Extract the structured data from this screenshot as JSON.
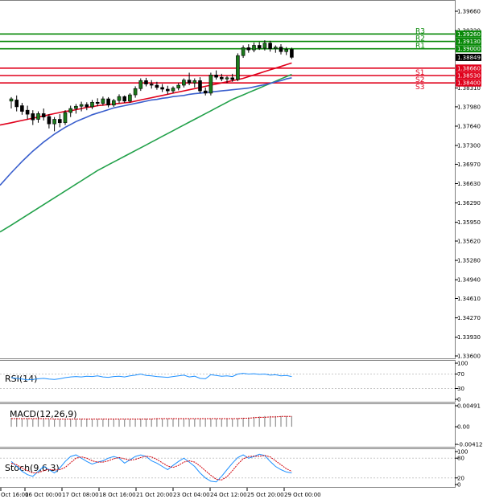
{
  "colors": {
    "bull": "#1b7a1b",
    "bear": "#000000",
    "sma_fast": "#e0001b",
    "sma_mid": "#3a5fcd",
    "sma_slow": "#22a14a",
    "resistance": "#0a8a0a",
    "support": "#e0001b",
    "oscillator": "#1e90ff",
    "signal": "#d0000a",
    "grid": "#c8c8c8",
    "current_price_box": "#000000"
  },
  "chart_data": [
    {
      "type": "candlestick",
      "name": "price",
      "ylim": [
        1.336,
        1.3966
      ],
      "y_ticks": [
        "1.39660",
        "1.39320",
        "1.38310",
        "1.37980",
        "1.37640",
        "1.37300",
        "1.36970",
        "1.36630",
        "1.36290",
        "1.35950",
        "1.35620",
        "1.35280",
        "1.34940",
        "1.34610",
        "1.34270",
        "1.33930",
        "1.33600"
      ],
      "x_tick_labels": [
        "Oct 16:00",
        "16 Oct 00:00",
        "17 Oct 08:00",
        "18 Oct 16:00",
        "21 Oct 20:00",
        "23 Oct 04:00",
        "24 Oct 12:00",
        "25 Oct 20:00",
        "29 Oct 00:00"
      ],
      "current_price": "1.38849",
      "levels": [
        {
          "name": "R3",
          "value": 1.3926,
          "label": "1.39260",
          "kind": "resistance"
        },
        {
          "name": "R2",
          "value": 1.3913,
          "label": "1.39130",
          "kind": "resistance"
        },
        {
          "name": "R1",
          "value": 1.39,
          "label": "1.39000",
          "kind": "resistance"
        },
        {
          "name": "S1",
          "value": 1.3866,
          "label": "1.38660",
          "kind": "support"
        },
        {
          "name": "S2",
          "value": 1.3853,
          "label": "1.38530",
          "kind": "support"
        },
        {
          "name": "S3",
          "value": 1.384,
          "label": "1.38400",
          "kind": "support"
        }
      ],
      "candles": [
        [
          1.3808,
          1.3815,
          1.3795,
          1.3812
        ],
        [
          1.381,
          1.3818,
          1.379,
          1.3798
        ],
        [
          1.38,
          1.3805,
          1.3784,
          1.379
        ],
        [
          1.3792,
          1.38,
          1.3776,
          1.3785
        ],
        [
          1.3786,
          1.3792,
          1.3766,
          1.3775
        ],
        [
          1.3776,
          1.379,
          1.377,
          1.3786
        ],
        [
          1.3786,
          1.3795,
          1.3774,
          1.378
        ],
        [
          1.3781,
          1.3785,
          1.376,
          1.3768
        ],
        [
          1.3768,
          1.378,
          1.3755,
          1.3776
        ],
        [
          1.3776,
          1.3785,
          1.3762,
          1.377
        ],
        [
          1.377,
          1.3792,
          1.3766,
          1.3788
        ],
        [
          1.3788,
          1.38,
          1.378,
          1.3795
        ],
        [
          1.3795,
          1.3803,
          1.3786,
          1.3799
        ],
        [
          1.3799,
          1.3807,
          1.379,
          1.3802
        ],
        [
          1.3802,
          1.3806,
          1.3792,
          1.3798
        ],
        [
          1.3798,
          1.381,
          1.3794,
          1.3806
        ],
        [
          1.3806,
          1.3813,
          1.3799,
          1.3804
        ],
        [
          1.3804,
          1.3816,
          1.38,
          1.3812
        ],
        [
          1.3812,
          1.3815,
          1.3797,
          1.3801
        ],
        [
          1.3801,
          1.3812,
          1.3798,
          1.3809
        ],
        [
          1.3809,
          1.382,
          1.3804,
          1.3816
        ],
        [
          1.3816,
          1.3818,
          1.3805,
          1.3808
        ],
        [
          1.3808,
          1.3822,
          1.3805,
          1.3819
        ],
        [
          1.3819,
          1.3834,
          1.3814,
          1.383
        ],
        [
          1.383,
          1.3848,
          1.3826,
          1.3844
        ],
        [
          1.3844,
          1.3849,
          1.3834,
          1.3838
        ],
        [
          1.3838,
          1.3845,
          1.383,
          1.3836
        ],
        [
          1.3836,
          1.3842,
          1.3828,
          1.3832
        ],
        [
          1.3832,
          1.3838,
          1.3824,
          1.3829
        ],
        [
          1.3829,
          1.3835,
          1.382,
          1.3826
        ],
        [
          1.3826,
          1.3834,
          1.3822,
          1.3831
        ],
        [
          1.3831,
          1.384,
          1.3827,
          1.3836
        ],
        [
          1.3836,
          1.3848,
          1.3832,
          1.3845
        ],
        [
          1.3845,
          1.3858,
          1.3836,
          1.384
        ],
        [
          1.384,
          1.3848,
          1.3832,
          1.3844
        ],
        [
          1.3844,
          1.385,
          1.3822,
          1.3826
        ],
        [
          1.3826,
          1.3832,
          1.3818,
          1.3822
        ],
        [
          1.3822,
          1.3858,
          1.3818,
          1.3854
        ],
        [
          1.3854,
          1.3862,
          1.3846,
          1.385
        ],
        [
          1.385,
          1.3856,
          1.3843,
          1.3847
        ],
        [
          1.3847,
          1.3852,
          1.384,
          1.3849
        ],
        [
          1.3849,
          1.3856,
          1.3842,
          1.3846
        ],
        [
          1.3846,
          1.3892,
          1.3843,
          1.3888
        ],
        [
          1.3888,
          1.3906,
          1.3884,
          1.3902
        ],
        [
          1.3902,
          1.3908,
          1.3893,
          1.3898
        ],
        [
          1.3898,
          1.3911,
          1.3894,
          1.3906
        ],
        [
          1.3906,
          1.3912,
          1.3898,
          1.3901
        ],
        [
          1.3901,
          1.3915,
          1.3897,
          1.391
        ],
        [
          1.391,
          1.3914,
          1.3895,
          1.39
        ],
        [
          1.39,
          1.3906,
          1.3893,
          1.3903
        ],
        [
          1.3903,
          1.3908,
          1.389,
          1.3895
        ],
        [
          1.3895,
          1.3903,
          1.3889,
          1.3899
        ],
        [
          1.3899,
          1.3902,
          1.3882,
          1.3885
        ]
      ],
      "sma_fast": [
        1.377,
        1.3772,
        1.3774,
        1.3776,
        1.3778,
        1.378,
        1.3782,
        1.3784,
        1.3786,
        1.3788,
        1.379,
        1.3791,
        1.3793,
        1.3795,
        1.3797,
        1.3798,
        1.38,
        1.3801,
        1.3802,
        1.3803,
        1.3804,
        1.3805,
        1.3806,
        1.3808,
        1.381,
        1.3812,
        1.3814,
        1.3816,
        1.3818,
        1.382,
        1.3822,
        1.3824,
        1.3826,
        1.3828,
        1.383,
        1.3832,
        1.3834,
        1.3836,
        1.3838,
        1.384,
        1.3842,
        1.3844,
        1.3846,
        1.3848,
        1.3851,
        1.3854,
        1.3857,
        1.386,
        1.3863,
        1.3866,
        1.3869,
        1.3872,
        1.3875
      ],
      "sma_mid": [
        1.3682,
        1.3692,
        1.3702,
        1.3711,
        1.372,
        1.3728,
        1.3736,
        1.3743,
        1.375,
        1.3756,
        1.3762,
        1.3767,
        1.3772,
        1.3776,
        1.378,
        1.3784,
        1.3787,
        1.379,
        1.3793,
        1.3796,
        1.3798,
        1.38,
        1.3802,
        1.3804,
        1.3806,
        1.3808,
        1.381,
        1.3811,
        1.3813,
        1.3814,
        1.3816,
        1.3817,
        1.3818,
        1.382,
        1.3821,
        1.3822,
        1.3823,
        1.3824,
        1.3825,
        1.3826,
        1.3827,
        1.3828,
        1.3829,
        1.383,
        1.3831,
        1.3833,
        1.3835,
        1.3837,
        1.3839,
        1.3842,
        1.3844,
        1.3847,
        1.3849
      ],
      "sma_slow": [
        1.359,
        1.3596,
        1.3602,
        1.3608,
        1.3614,
        1.362,
        1.3626,
        1.3632,
        1.3638,
        1.3644,
        1.365,
        1.3656,
        1.3662,
        1.3668,
        1.3674,
        1.368,
        1.3686,
        1.3691,
        1.3696,
        1.3701,
        1.3706,
        1.3711,
        1.3716,
        1.3721,
        1.3726,
        1.3731,
        1.3736,
        1.3741,
        1.3746,
        1.3751,
        1.3756,
        1.3761,
        1.3766,
        1.3771,
        1.3776,
        1.3781,
        1.3786,
        1.3791,
        1.3796,
        1.3801,
        1.3806,
        1.3811,
        1.3815,
        1.3819,
        1.3823,
        1.3827,
        1.3831,
        1.3835,
        1.3839,
        1.3843,
        1.3847,
        1.3851,
        1.3855
      ]
    },
    {
      "type": "line",
      "name": "RSI(14)",
      "label": "RSI(14)",
      "ylim": [
        0,
        100
      ],
      "y_ticks": [
        "100",
        "70",
        "30",
        "0"
      ],
      "values": [
        60,
        58,
        56,
        54,
        55,
        57,
        58,
        56,
        55,
        57,
        60,
        62,
        63,
        62,
        64,
        63,
        65,
        62,
        61,
        63,
        64,
        62,
        65,
        67,
        70,
        66,
        65,
        63,
        62,
        61,
        63,
        65,
        67,
        62,
        64,
        58,
        57,
        68,
        66,
        64,
        65,
        63,
        70,
        72,
        70,
        71,
        69,
        70,
        67,
        68,
        65,
        66,
        63
      ]
    },
    {
      "type": "bar",
      "name": "MACD(12,26,9)",
      "label": "MACD(12,26,9)",
      "ylim": [
        -0.00412,
        0.00491
      ],
      "y_ticks": [
        "0.00491",
        "0.00",
        "-0.00412"
      ],
      "histogram": [
        0.0021,
        0.0021,
        0.002,
        0.002,
        0.0019,
        0.0019,
        0.0019,
        0.0018,
        0.0018,
        0.0018,
        0.0018,
        0.0018,
        0.0018,
        0.0018,
        0.0018,
        0.0018,
        0.0018,
        0.0018,
        0.0018,
        0.0018,
        0.0018,
        0.0018,
        0.0018,
        0.0018,
        0.0019,
        0.0019,
        0.0019,
        0.0019,
        0.0019,
        0.0019,
        0.0019,
        0.0019,
        0.0019,
        0.0019,
        0.0019,
        0.0019,
        0.0019,
        0.0019,
        0.0019,
        0.0019,
        0.0019,
        0.0019,
        0.002,
        0.0021,
        0.0022,
        0.0023,
        0.0024,
        0.0025,
        0.0025,
        0.0025,
        0.0025,
        0.0025,
        0.0025
      ],
      "signal": [
        0.0019,
        0.0019,
        0.0019,
        0.0019,
        0.0019,
        0.0019,
        0.0019,
        0.0019,
        0.0018,
        0.0018,
        0.0018,
        0.0018,
        0.0018,
        0.0018,
        0.0018,
        0.0018,
        0.0018,
        0.0018,
        0.0018,
        0.0018,
        0.0018,
        0.0018,
        0.0018,
        0.0018,
        0.0018,
        0.0018,
        0.0018,
        0.0019,
        0.0019,
        0.0019,
        0.0019,
        0.0019,
        0.0019,
        0.0019,
        0.0019,
        0.0019,
        0.0019,
        0.0019,
        0.0019,
        0.0019,
        0.0019,
        0.0019,
        0.0019,
        0.002,
        0.002,
        0.0021,
        0.0022,
        0.0022,
        0.0023,
        0.0023,
        0.0024,
        0.0024,
        0.0024
      ]
    },
    {
      "type": "line",
      "name": "Stoch(9,6,3)",
      "label": "Stoch(9,6,3)",
      "ylim": [
        0,
        100
      ],
      "y_ticks": [
        "100",
        "80",
        "20",
        "0"
      ],
      "main": [
        70,
        55,
        40,
        30,
        25,
        40,
        55,
        45,
        35,
        50,
        70,
        85,
        90,
        80,
        70,
        62,
        68,
        72,
        80,
        85,
        80,
        65,
        75,
        85,
        90,
        85,
        72,
        65,
        55,
        45,
        58,
        70,
        80,
        68,
        55,
        35,
        20,
        10,
        8,
        25,
        45,
        65,
        82,
        90,
        80,
        85,
        92,
        88,
        70,
        55,
        45,
        38,
        35
      ],
      "signal": [
        65,
        60,
        50,
        42,
        35,
        36,
        42,
        46,
        44,
        45,
        52,
        66,
        80,
        84,
        80,
        72,
        68,
        68,
        72,
        78,
        82,
        78,
        74,
        76,
        82,
        86,
        84,
        76,
        66,
        56,
        52,
        58,
        68,
        72,
        68,
        56,
        42,
        28,
        16,
        14,
        24,
        42,
        62,
        78,
        85,
        86,
        86,
        88,
        84,
        72,
        60,
        48,
        40
      ]
    }
  ]
}
